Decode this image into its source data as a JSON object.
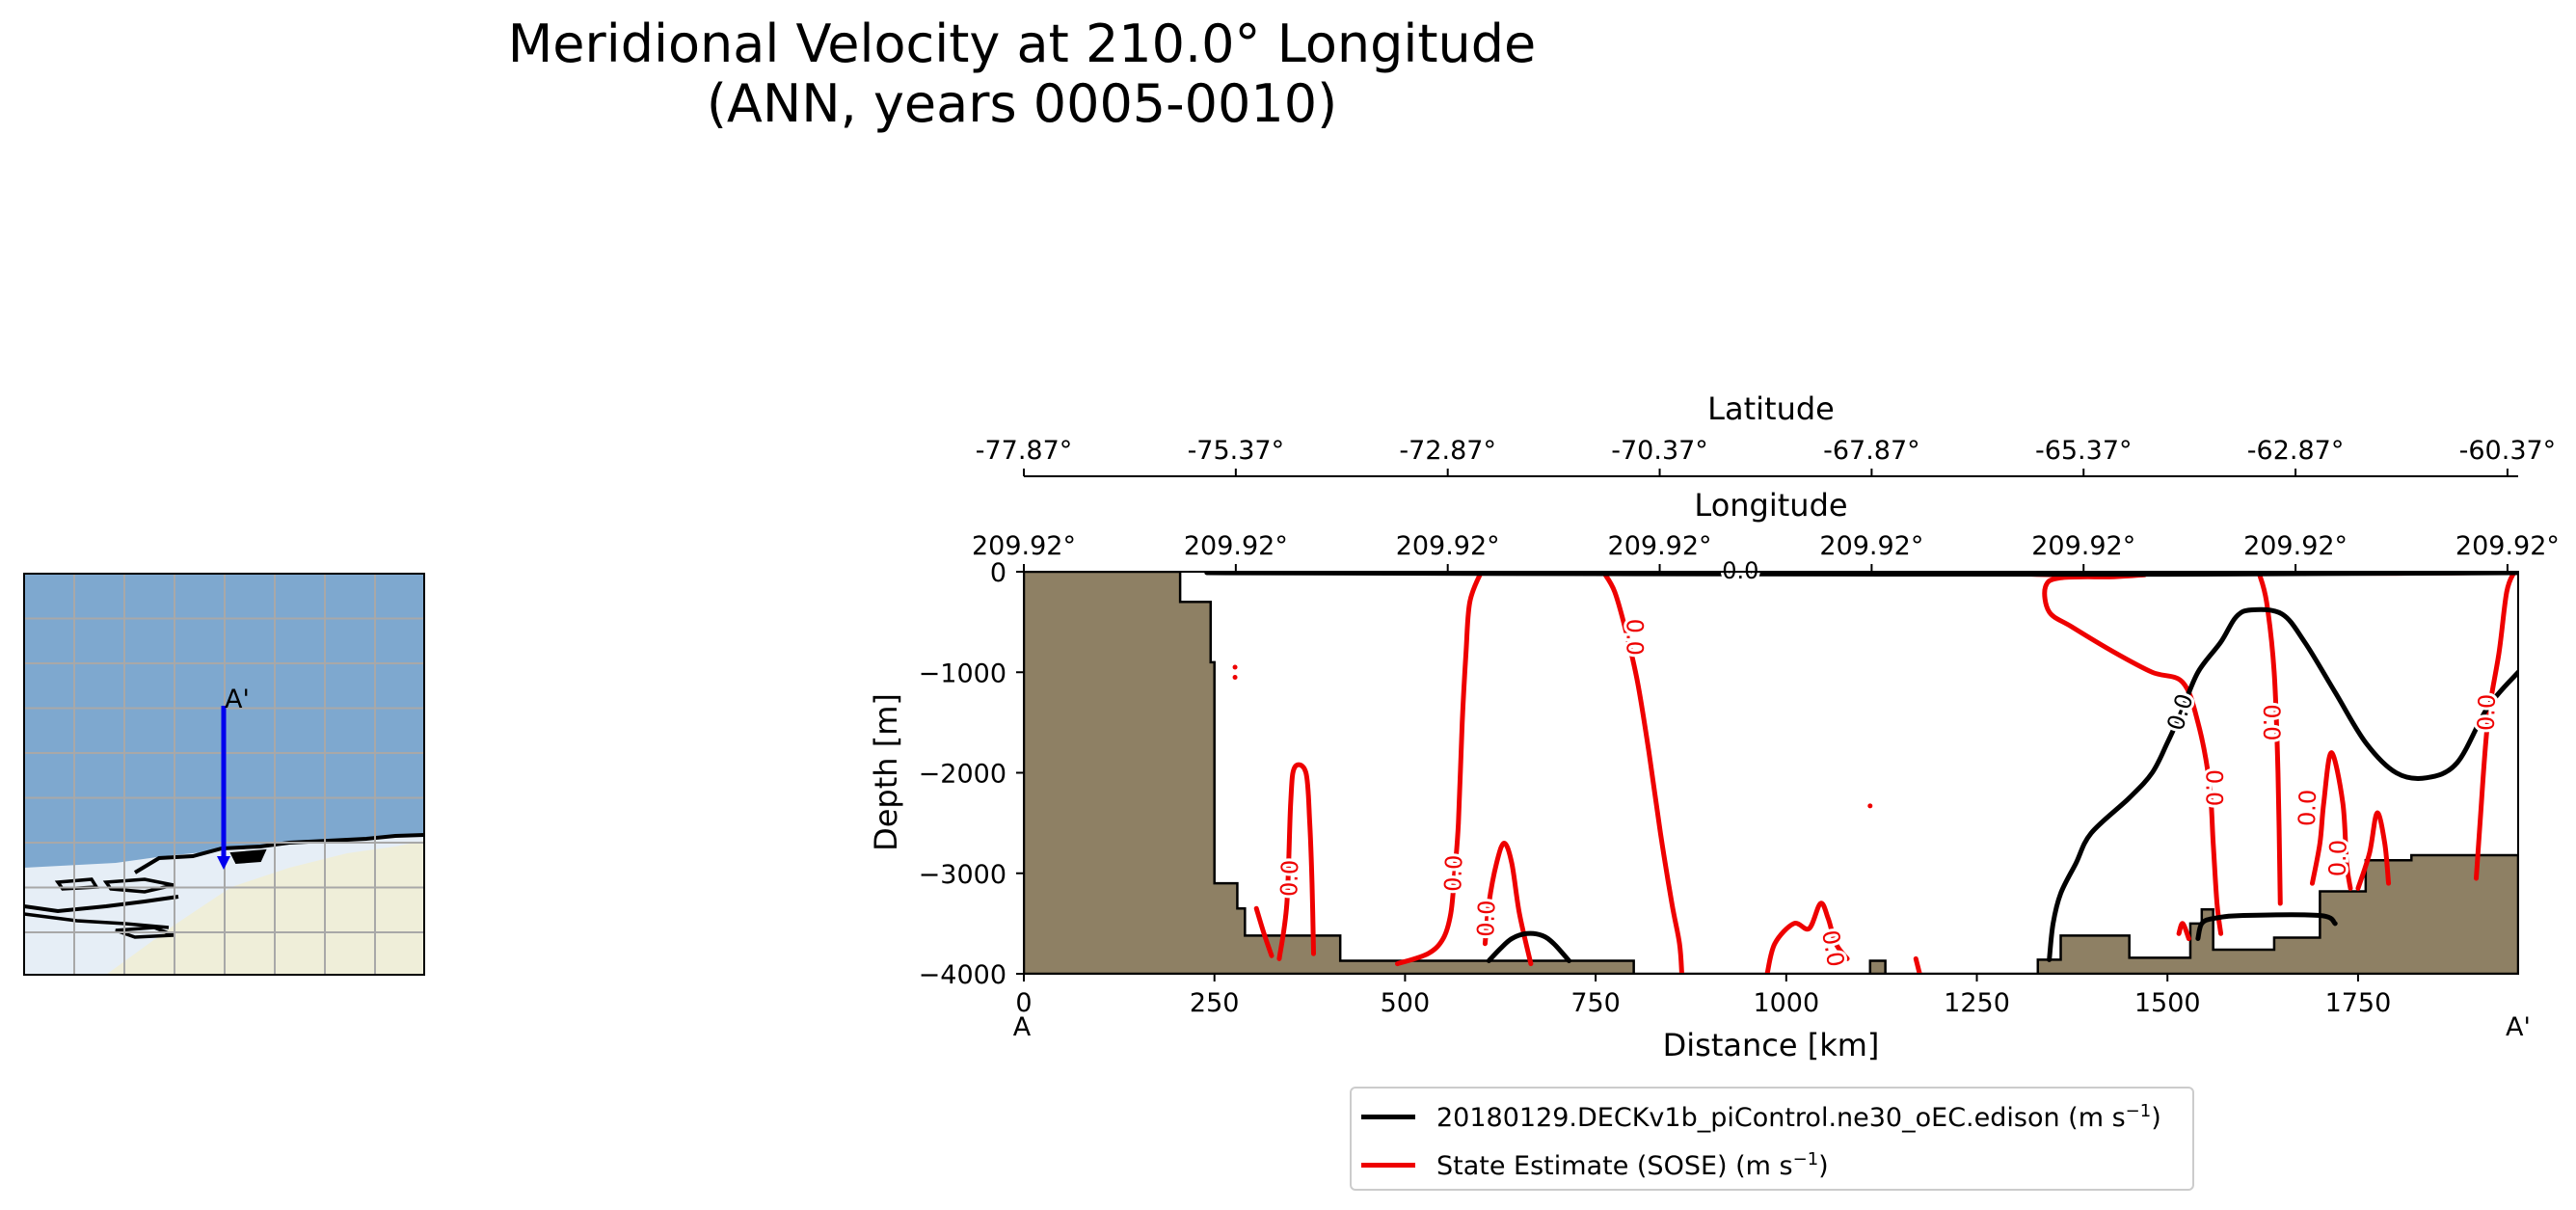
{
  "figure": {
    "title_line1": "Meridional Velocity at 210.0° Longitude",
    "title_line2": "(ANN, years 0005-0010)"
  },
  "colors": {
    "model": "#000000",
    "obs": "#ee0000",
    "land": "#8e8064",
    "map_ocean": "#7ea8cf",
    "map_ice": "#e6eef6",
    "map_land": "#efeed9",
    "transect": "#0000ee"
  },
  "inset_map": {
    "point_label": "A'",
    "transect_icon": "blue-arrow-icon"
  },
  "legend": {
    "entries": [
      {
        "label": "20180129.DECKv1b_piControl.ne30_oEC.edison (m s",
        "unit_sup": "−1",
        "suffix": ")",
        "color": "#000000"
      },
      {
        "label": "State Estimate (SOSE) (m s",
        "unit_sup": "−1",
        "suffix": ")",
        "color": "#ee0000"
      }
    ]
  },
  "chart_data": {
    "type": "contour",
    "xlabel": "Distance [km]",
    "ylabel": "Depth [m]",
    "xlim": [
      0,
      1960
    ],
    "ylim": [
      -4000,
      0
    ],
    "x_ticks": [
      0,
      250,
      500,
      750,
      1000,
      1250,
      1500,
      1750
    ],
    "x_tick_labels": [
      "0",
      "250",
      "500",
      "750",
      "1000",
      "1250",
      "1500",
      "1750"
    ],
    "y_ticks": [
      0,
      -1000,
      -2000,
      -3000,
      -4000
    ],
    "y_tick_labels": [
      "0",
      "−1000",
      "−2000",
      "−3000",
      "−4000"
    ],
    "start_label": "A",
    "end_label": "A'",
    "top_axis_1": {
      "label": "Latitude",
      "tick_positions_km": [
        0,
        278,
        556,
        834,
        1112,
        1390,
        1668,
        1946
      ],
      "tick_labels": [
        "-77.87°",
        "-75.37°",
        "-72.87°",
        "-70.37°",
        "-67.87°",
        "-65.37°",
        "-62.87°",
        "-60.37°"
      ]
    },
    "top_axis_2": {
      "label": "Longitude",
      "tick_positions_km": [
        0,
        278,
        556,
        834,
        1112,
        1390,
        1668,
        1946
      ],
      "tick_labels": [
        "209.92°",
        "209.92°",
        "209.92°",
        "209.92°",
        "209.92°",
        "209.92°",
        "209.92°",
        "209.92°"
      ]
    },
    "bathymetry": [
      [
        0,
        0
      ],
      [
        205,
        0
      ],
      [
        205,
        -300
      ],
      [
        245,
        -300
      ],
      [
        245,
        -900
      ],
      [
        250,
        -900
      ],
      [
        250,
        -3100
      ],
      [
        280,
        -3100
      ],
      [
        280,
        -3350
      ],
      [
        290,
        -3350
      ],
      [
        290,
        -3620
      ],
      [
        415,
        -3620
      ],
      [
        415,
        -3870
      ],
      [
        800,
        -3870
      ],
      [
        800,
        -4000
      ],
      [
        1110,
        -4000
      ],
      [
        1110,
        -3870
      ],
      [
        1130,
        -3870
      ],
      [
        1130,
        -4000
      ],
      [
        1330,
        -4000
      ],
      [
        1330,
        -3860
      ],
      [
        1360,
        -3860
      ],
      [
        1360,
        -3620
      ],
      [
        1450,
        -3620
      ],
      [
        1450,
        -3840
      ],
      [
        1530,
        -3840
      ],
      [
        1530,
        -3500
      ],
      [
        1545,
        -3500
      ],
      [
        1545,
        -3360
      ],
      [
        1560,
        -3360
      ],
      [
        1560,
        -3760
      ],
      [
        1640,
        -3760
      ],
      [
        1640,
        -3640
      ],
      [
        1700,
        -3640
      ],
      [
        1700,
        -3180
      ],
      [
        1760,
        -3180
      ],
      [
        1760,
        -2870
      ],
      [
        1820,
        -2870
      ],
      [
        1820,
        -2820
      ],
      [
        1960,
        -2820
      ],
      [
        1960,
        -4000
      ],
      [
        0,
        -4000
      ]
    ],
    "series": [
      {
        "name": "20180129.DECKv1b_piControl.ne30_oEC.edison",
        "level": 0.0,
        "contour_labels": [
          {
            "x": 940,
            "y": 0,
            "text": "0.0",
            "rotation": 0
          },
          {
            "x": 1518,
            "y": -1400,
            "text": "0.0",
            "rotation": -72
          }
        ],
        "lines": [
          [
            [
              240,
              -10
            ],
            [
              800,
              -20
            ],
            [
              1500,
              -25
            ],
            [
              1960,
              -10
            ]
          ],
          [
            [
              610,
              -3870
            ],
            [
              625,
              -3750
            ],
            [
              640,
              -3650
            ],
            [
              660,
              -3600
            ],
            [
              680,
              -3620
            ],
            [
              695,
              -3700
            ],
            [
              715,
              -3870
            ]
          ],
          [
            [
              1345,
              -3860
            ],
            [
              1350,
              -3500
            ],
            [
              1360,
              -3200
            ],
            [
              1380,
              -2900
            ],
            [
              1400,
              -2600
            ],
            [
              1450,
              -2250
            ],
            [
              1480,
              -2000
            ],
            [
              1500,
              -1700
            ],
            [
              1518,
              -1400
            ],
            [
              1540,
              -1000
            ],
            [
              1570,
              -700
            ],
            [
              1590,
              -450
            ],
            [
              1610,
              -380
            ],
            [
              1650,
              -420
            ],
            [
              1680,
              -700
            ],
            [
              1720,
              -1200
            ],
            [
              1760,
              -1700
            ],
            [
              1800,
              -2000
            ],
            [
              1840,
              -2050
            ],
            [
              1880,
              -1900
            ],
            [
              1920,
              -1350
            ],
            [
              1960,
              -1000
            ]
          ],
          [
            [
              1540,
              -3650
            ],
            [
              1545,
              -3500
            ],
            [
              1560,
              -3450
            ],
            [
              1600,
              -3420
            ],
            [
              1700,
              -3420
            ],
            [
              1720,
              -3500
            ]
          ]
        ]
      },
      {
        "name": "State Estimate (SOSE)",
        "level": 0.0,
        "contour_labels": [
          {
            "x": 350,
            "y": -3050,
            "text": "0.0",
            "rotation": -88
          },
          {
            "x": 565,
            "y": -3000,
            "text": "0.0",
            "rotation": -88
          },
          {
            "x": 608,
            "y": -3450,
            "text": "0.0",
            "rotation": -88
          },
          {
            "x": 800,
            "y": -650,
            "text": "0.0",
            "rotation": 90
          },
          {
            "x": 1060,
            "y": -3750,
            "text": "0.0",
            "rotation": 80
          },
          {
            "x": 1560,
            "y": -2150,
            "text": "0.0",
            "rotation": 90
          },
          {
            "x": 1635,
            "y": -1500,
            "text": "0.0",
            "rotation": 90
          },
          {
            "x": 1685,
            "y": -2350,
            "text": "0.0",
            "rotation": -88
          },
          {
            "x": 1725,
            "y": -2850,
            "text": "0.0",
            "rotation": -88
          },
          {
            "x": 1920,
            "y": -1400,
            "text": "0.0",
            "rotation": -88
          }
        ],
        "lines": [
          [
            [
              305,
              -3350
            ],
            [
              315,
              -3600
            ],
            [
              325,
              -3820
            ]
          ],
          [
            [
              335,
              -3850
            ],
            [
              345,
              -3300
            ],
            [
              350,
              -2300
            ],
            [
              355,
              -1950
            ],
            [
              370,
              -2000
            ],
            [
              375,
              -2500
            ],
            [
              378,
              -3100
            ],
            [
              380,
              -3800
            ]
          ],
          [
            [
              490,
              -3900
            ],
            [
              530,
              -3800
            ],
            [
              550,
              -3650
            ],
            [
              560,
              -3400
            ],
            [
              565,
              -3000
            ],
            [
              570,
              -2500
            ],
            [
              575,
              -1500
            ],
            [
              580,
              -800
            ],
            [
              585,
              -300
            ],
            [
              600,
              0
            ]
          ],
          [
            [
              605,
              -3700
            ],
            [
              610,
              -3300
            ],
            [
              620,
              -2900
            ],
            [
              630,
              -2700
            ],
            [
              640,
              -2900
            ],
            [
              650,
              -3400
            ],
            [
              665,
              -3900
            ]
          ],
          [
            [
              760,
              0
            ],
            [
              775,
              -200
            ],
            [
              790,
              -600
            ],
            [
              805,
              -1100
            ],
            [
              820,
              -1800
            ],
            [
              835,
              -2600
            ],
            [
              850,
              -3300
            ],
            [
              860,
              -3700
            ],
            [
              863,
              -4000
            ]
          ],
          [
            [
              975,
              -4000
            ],
            [
              985,
              -3700
            ],
            [
              1010,
              -3500
            ],
            [
              1030,
              -3550
            ],
            [
              1045,
              -3300
            ],
            [
              1055,
              -3450
            ],
            [
              1065,
              -3700
            ],
            [
              1080,
              -3850
            ]
          ],
          [
            [
              1170,
              -3850
            ],
            [
              1175,
              -4000
            ]
          ],
          [
            [
              1260,
              -10
            ],
            [
              1400,
              -40
            ],
            [
              1470,
              -30
            ]
          ],
          [
            [
              1470,
              -30
            ],
            [
              1430,
              -50
            ],
            [
              1360,
              -60
            ],
            [
              1340,
              -150
            ],
            [
              1345,
              -400
            ],
            [
              1375,
              -550
            ],
            [
              1430,
              -800
            ],
            [
              1480,
              -1000
            ],
            [
              1520,
              -1100
            ],
            [
              1540,
              -1500
            ],
            [
              1555,
              -2100
            ],
            [
              1560,
              -2700
            ],
            [
              1565,
              -3300
            ],
            [
              1570,
              -3600
            ]
          ],
          [
            [
              1620,
              -10
            ],
            [
              1630,
              -300
            ],
            [
              1640,
              -1000
            ],
            [
              1645,
              -2000
            ],
            [
              1648,
              -3300
            ]
          ],
          [
            [
              1690,
              -3100
            ],
            [
              1700,
              -2700
            ],
            [
              1705,
              -2300
            ],
            [
              1715,
              -1800
            ],
            [
              1730,
              -2300
            ],
            [
              1735,
              -2900
            ],
            [
              1740,
              -3150
            ]
          ],
          [
            [
              1750,
              -3150
            ],
            [
              1765,
              -2800
            ],
            [
              1775,
              -2400
            ],
            [
              1785,
              -2700
            ],
            [
              1790,
              -3100
            ]
          ],
          [
            [
              1640,
              -10
            ],
            [
              1800,
              -15
            ],
            [
              1960,
              -5
            ]
          ],
          [
            [
              1905,
              -3050
            ],
            [
              1910,
              -2500
            ],
            [
              1920,
              -1500
            ],
            [
              1935,
              -800
            ],
            [
              1945,
              -200
            ],
            [
              1955,
              0
            ]
          ],
          [
            [
              1515,
              -3600
            ],
            [
              1520,
              -3500
            ],
            [
              1528,
              -3650
            ]
          ]
        ],
        "dots": [
          {
            "x": 277,
            "y": -950
          },
          {
            "x": 277,
            "y": -1050
          },
          {
            "x": 1110,
            "y": -2330
          }
        ]
      }
    ]
  }
}
